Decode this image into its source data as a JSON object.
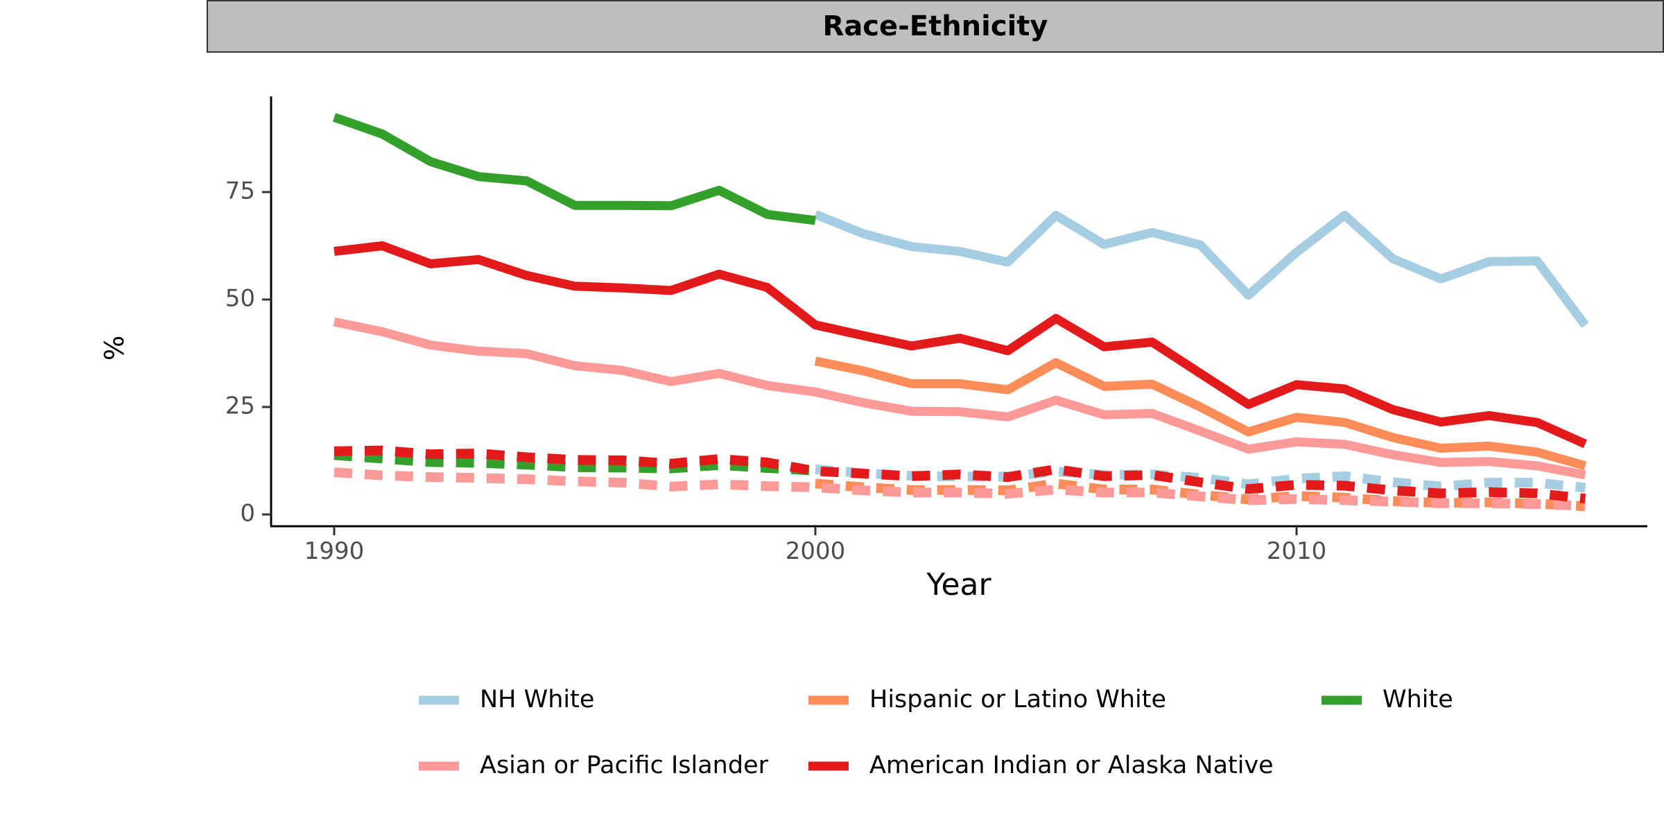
{
  "chart_data": {
    "type": "line",
    "title": "Race-Ethnicity",
    "xlabel": "Year",
    "ylabel": "%",
    "xlim": [
      1990,
      2016
    ],
    "ylim": [
      0,
      95
    ],
    "xticks": [
      1990,
      2000,
      2010
    ],
    "yticks": [
      0,
      25,
      50,
      75
    ],
    "grid": false,
    "legend_position": "bottom",
    "line_styles": {
      "solid": "solid",
      "dotted": "dotted"
    },
    "series": [
      {
        "name": "NH White",
        "color": "#a6cee3",
        "solid": {
          "x": [
            2000,
            2001,
            2002,
            2003,
            2004,
            2005,
            2006,
            2007,
            2008,
            2009,
            2010,
            2011,
            2012,
            2013,
            2014,
            2015,
            2016
          ],
          "y": [
            69.8,
            65.3,
            62.3,
            61.2,
            58.7,
            69.6,
            62.8,
            65.6,
            62.7,
            51.0,
            61.0,
            69.6,
            59.5,
            54.8,
            58.8,
            59.0,
            44.0
          ]
        },
        "dotted": {
          "x": [
            2000,
            2001,
            2002,
            2003,
            2004,
            2005,
            2006,
            2007,
            2008,
            2009,
            2010,
            2011,
            2012,
            2013,
            2014,
            2015,
            2016
          ],
          "y": [
            10.5,
            9.6,
            9.0,
            8.8,
            8.8,
            10.0,
            9.2,
            9.3,
            8.5,
            7.0,
            8.3,
            8.9,
            7.5,
            6.5,
            7.4,
            7.4,
            6.2
          ]
        }
      },
      {
        "name": "Hispanic or Latino White",
        "color": "#fc8d59",
        "solid": {
          "x": [
            2000,
            2001,
            2002,
            2003,
            2004,
            2005,
            2006,
            2007,
            2008,
            2009,
            2010,
            2011,
            2012,
            2013,
            2014,
            2015,
            2016
          ],
          "y": [
            35.7,
            33.4,
            30.4,
            30.4,
            29.0,
            35.3,
            29.8,
            30.3,
            25.0,
            19.2,
            22.6,
            21.4,
            17.9,
            15.4,
            15.9,
            14.5,
            11.3
          ]
        },
        "dotted": {
          "x": [
            2000,
            2001,
            2002,
            2003,
            2004,
            2005,
            2006,
            2007,
            2008,
            2009,
            2010,
            2011,
            2012,
            2013,
            2014,
            2015,
            2016
          ],
          "y": [
            7.2,
            6.3,
            5.7,
            5.7,
            5.6,
            7.2,
            5.8,
            5.8,
            4.6,
            3.5,
            4.3,
            3.9,
            3.1,
            2.7,
            2.8,
            2.5,
            1.9
          ]
        }
      },
      {
        "name": "White",
        "color": "#33a02c",
        "solid": {
          "x": [
            1990,
            1991,
            1992,
            1993,
            1994,
            1995,
            1996,
            1997,
            1998,
            1999,
            2000
          ],
          "y": [
            92.4,
            88.5,
            82.1,
            78.6,
            77.6,
            71.9,
            71.9,
            71.8,
            75.4,
            69.8,
            68.4
          ]
        },
        "dotted": {
          "x": [
            1990,
            1991,
            1992,
            1993,
            1994,
            1995,
            1996,
            1997,
            1998,
            1999,
            2000
          ],
          "y": [
            13.8,
            13.0,
            12.2,
            12.0,
            11.6,
            11.0,
            10.9,
            10.7,
            11.5,
            10.8,
            10.2
          ]
        }
      },
      {
        "name": "Asian or Pacific Islander",
        "color": "#fb9a99",
        "solid": {
          "x": [
            1990,
            1991,
            1992,
            1993,
            1994,
            1995,
            1996,
            1997,
            1998,
            1999,
            2000,
            2001,
            2002,
            2003,
            2004,
            2005,
            2006,
            2007,
            2008,
            2009,
            2010,
            2011,
            2012,
            2013,
            2014,
            2015,
            2016
          ],
          "y": [
            44.8,
            42.5,
            39.4,
            38.0,
            37.4,
            34.6,
            33.5,
            30.9,
            32.8,
            30.0,
            28.5,
            26.0,
            24.0,
            23.9,
            22.7,
            26.6,
            23.2,
            23.5,
            19.4,
            15.2,
            16.9,
            16.3,
            13.9,
            12.1,
            12.3,
            11.3,
            9.2
          ]
        },
        "dotted": {
          "x": [
            1990,
            1991,
            1992,
            1993,
            1994,
            1995,
            1996,
            1997,
            1998,
            1999,
            2000,
            2001,
            2002,
            2003,
            2004,
            2005,
            2006,
            2007,
            2008,
            2009,
            2010,
            2011,
            2012,
            2013,
            2014,
            2015,
            2016
          ],
          "y": [
            9.8,
            9.1,
            8.7,
            8.5,
            8.2,
            7.7,
            7.4,
            6.5,
            7.0,
            6.6,
            6.3,
            5.6,
            5.1,
            5.1,
            4.8,
            5.8,
            5.1,
            5.1,
            4.2,
            3.3,
            3.6,
            3.3,
            3.0,
            2.6,
            2.6,
            2.4,
            2.0
          ]
        }
      },
      {
        "name": "American Indian or Alaska Native",
        "color": "#e31a1c",
        "solid": {
          "x": [
            1990,
            1991,
            1992,
            1993,
            1994,
            1995,
            1996,
            1997,
            1998,
            1999,
            2000,
            2001,
            2002,
            2003,
            2004,
            2005,
            2006,
            2007,
            2008,
            2009,
            2010,
            2011,
            2012,
            2013,
            2014,
            2015,
            2016
          ],
          "y": [
            61.2,
            62.5,
            58.3,
            59.3,
            55.6,
            53.1,
            52.7,
            52.1,
            55.9,
            52.8,
            44.1,
            41.6,
            39.2,
            41.0,
            38.1,
            45.6,
            39.0,
            40.1,
            32.8,
            25.6,
            30.2,
            29.2,
            24.4,
            21.5,
            23.0,
            21.4,
            16.4
          ]
        },
        "dotted": {
          "x": [
            1990,
            1991,
            1992,
            1993,
            1994,
            1995,
            1996,
            1997,
            1998,
            1999,
            2000,
            2001,
            2002,
            2003,
            2004,
            2005,
            2006,
            2007,
            2008,
            2009,
            2010,
            2011,
            2012,
            2013,
            2014,
            2015,
            2016
          ],
          "y": [
            14.7,
            14.9,
            14.0,
            14.2,
            13.3,
            12.7,
            12.6,
            11.8,
            12.9,
            12.1,
            10.1,
            9.5,
            8.9,
            9.3,
            8.7,
            10.5,
            8.9,
            9.2,
            7.5,
            5.9,
            6.9,
            6.7,
            5.6,
            4.9,
            5.2,
            4.9,
            3.7
          ]
        }
      }
    ],
    "legend": [
      [
        "NH White",
        "Hispanic or Latino White",
        "White"
      ],
      [
        "Asian or Pacific Islander",
        "American Indian or Alaska Native"
      ]
    ]
  }
}
